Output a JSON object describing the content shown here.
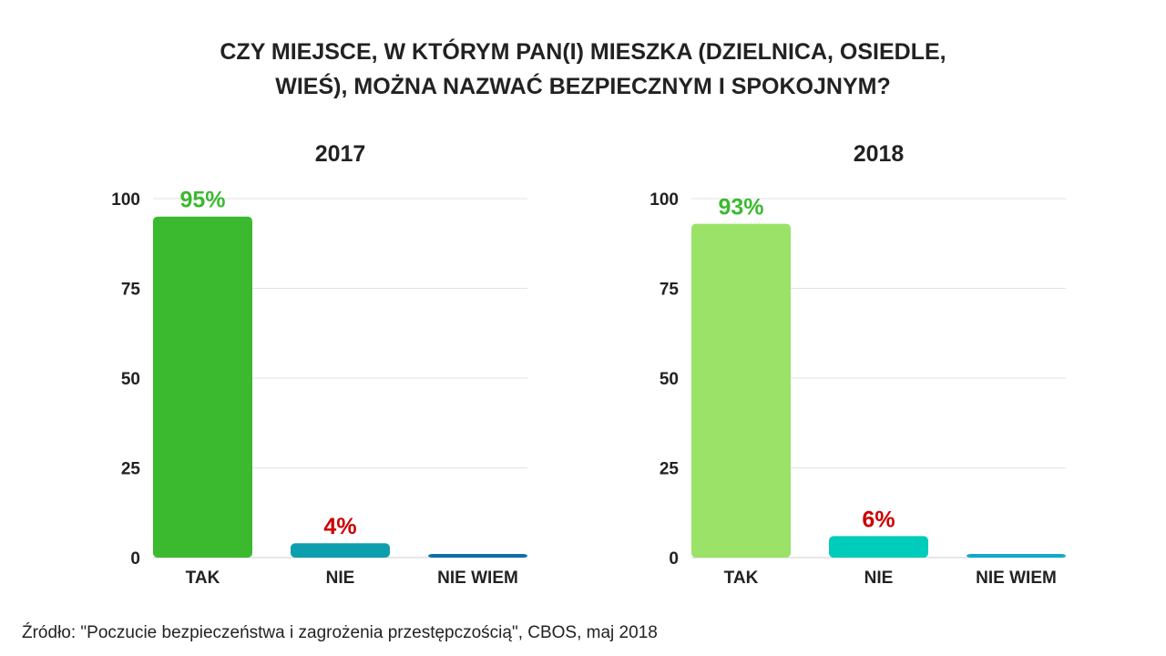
{
  "title": {
    "line1": "CZY MIEJSCE, W KTÓRYM PAN(I) MIESZKA (DZIELNICA, OSIEDLE,",
    "line2": "WIEŚ), MOŻNA NAZWAĆ BEZPIECZNYM I SPOKOJNYM?"
  },
  "chart_data": [
    {
      "type": "bar",
      "title": "2017",
      "categories": [
        "TAK",
        "NIE",
        "NIE WIEM"
      ],
      "values": [
        95,
        4,
        1
      ],
      "data_labels": [
        "95%",
        "4%",
        ""
      ],
      "label_colors": [
        "#3bb92f",
        "#cc0000",
        "#cc0000"
      ],
      "bar_colors": [
        "#3bb92f",
        "#0d9fae",
        "#0e70a8"
      ],
      "ylim": [
        0,
        100
      ],
      "yticks": [
        0,
        25,
        50,
        75,
        100
      ],
      "grid": true
    },
    {
      "type": "bar",
      "title": "2018",
      "categories": [
        "TAK",
        "NIE",
        "NIE WIEM"
      ],
      "values": [
        93,
        6,
        1
      ],
      "data_labels": [
        "93%",
        "6%",
        ""
      ],
      "label_colors": [
        "#3bb92f",
        "#cc0000",
        "#cc0000"
      ],
      "bar_colors": [
        "#9ae268",
        "#00ccbb",
        "#11aacc"
      ],
      "ylim": [
        0,
        100
      ],
      "yticks": [
        0,
        25,
        50,
        75,
        100
      ],
      "grid": true
    }
  ],
  "source": "Źródło: \"Poczucie bezpieczeństwa i zagrożenia przestępczością\", CBOS, maj 2018"
}
